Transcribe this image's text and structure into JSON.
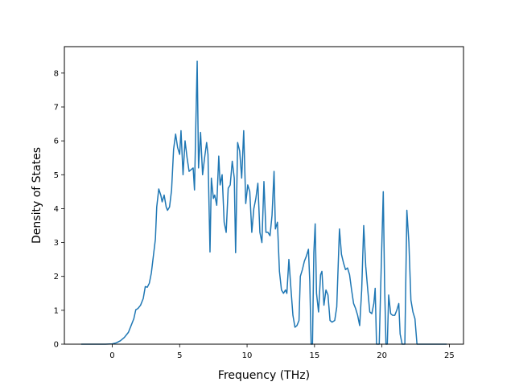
{
  "chart_data": {
    "type": "line",
    "title": "",
    "xlabel": "Frequency (THz)",
    "ylabel": "Density of States",
    "xlim": [
      -3.55,
      26.05
    ],
    "ylim": [
      0,
      8.78
    ],
    "xticks": [
      0,
      5,
      10,
      15,
      20,
      25
    ],
    "yticks": [
      0,
      1,
      2,
      3,
      4,
      5,
      6,
      7,
      8
    ],
    "grid": false,
    "legend": "none",
    "series": [
      {
        "color": "#1f77b4",
        "points": [
          [
            -2.3,
            0
          ],
          [
            -1.5,
            0
          ],
          [
            -0.5,
            0
          ],
          [
            0,
            0.01
          ],
          [
            0.3,
            0.04
          ],
          [
            0.6,
            0.1
          ],
          [
            0.9,
            0.2
          ],
          [
            1.2,
            0.35
          ],
          [
            1.4,
            0.55
          ],
          [
            1.6,
            0.75
          ],
          [
            1.75,
            1.02
          ],
          [
            1.9,
            1.05
          ],
          [
            2.1,
            1.15
          ],
          [
            2.3,
            1.35
          ],
          [
            2.45,
            1.7
          ],
          [
            2.6,
            1.68
          ],
          [
            2.75,
            1.8
          ],
          [
            2.9,
            2.1
          ],
          [
            3.05,
            2.6
          ],
          [
            3.2,
            3.1
          ],
          [
            3.3,
            4.05
          ],
          [
            3.45,
            4.58
          ],
          [
            3.6,
            4.4
          ],
          [
            3.7,
            4.2
          ],
          [
            3.85,
            4.4
          ],
          [
            4.0,
            4.05
          ],
          [
            4.1,
            3.95
          ],
          [
            4.25,
            4.05
          ],
          [
            4.4,
            4.55
          ],
          [
            4.55,
            5.75
          ],
          [
            4.7,
            6.2
          ],
          [
            4.85,
            5.8
          ],
          [
            5.0,
            5.6
          ],
          [
            5.1,
            6.3
          ],
          [
            5.25,
            5.0
          ],
          [
            5.4,
            6.0
          ],
          [
            5.55,
            5.5
          ],
          [
            5.7,
            5.1
          ],
          [
            5.85,
            5.15
          ],
          [
            6.0,
            5.2
          ],
          [
            6.1,
            4.55
          ],
          [
            6.2,
            6.5
          ],
          [
            6.3,
            8.35
          ],
          [
            6.4,
            5.2
          ],
          [
            6.55,
            6.25
          ],
          [
            6.7,
            5.0
          ],
          [
            6.85,
            5.5
          ],
          [
            7.0,
            5.95
          ],
          [
            7.1,
            5.6
          ],
          [
            7.25,
            2.72
          ],
          [
            7.35,
            4.9
          ],
          [
            7.5,
            4.3
          ],
          [
            7.6,
            4.4
          ],
          [
            7.75,
            4.1
          ],
          [
            7.9,
            5.55
          ],
          [
            8.0,
            4.7
          ],
          [
            8.15,
            5.0
          ],
          [
            8.3,
            3.6
          ],
          [
            8.45,
            3.3
          ],
          [
            8.6,
            4.6
          ],
          [
            8.75,
            4.7
          ],
          [
            8.9,
            5.4
          ],
          [
            9.05,
            4.9
          ],
          [
            9.15,
            2.7
          ],
          [
            9.3,
            5.95
          ],
          [
            9.45,
            5.7
          ],
          [
            9.6,
            4.9
          ],
          [
            9.75,
            6.3
          ],
          [
            9.9,
            4.15
          ],
          [
            10.05,
            4.7
          ],
          [
            10.2,
            4.5
          ],
          [
            10.35,
            3.3
          ],
          [
            10.5,
            4.0
          ],
          [
            10.65,
            4.3
          ],
          [
            10.8,
            4.75
          ],
          [
            10.95,
            3.3
          ],
          [
            11.1,
            3.0
          ],
          [
            11.25,
            4.8
          ],
          [
            11.4,
            3.3
          ],
          [
            11.55,
            3.3
          ],
          [
            11.7,
            3.2
          ],
          [
            11.85,
            3.8
          ],
          [
            12.0,
            5.1
          ],
          [
            12.1,
            3.4
          ],
          [
            12.25,
            3.6
          ],
          [
            12.4,
            2.15
          ],
          [
            12.55,
            1.6
          ],
          [
            12.7,
            1.5
          ],
          [
            12.85,
            1.6
          ],
          [
            12.95,
            1.5
          ],
          [
            13.1,
            2.5
          ],
          [
            13.25,
            1.65
          ],
          [
            13.4,
            0.85
          ],
          [
            13.55,
            0.5
          ],
          [
            13.7,
            0.55
          ],
          [
            13.85,
            0.7
          ],
          [
            13.95,
            2.0
          ],
          [
            14.1,
            2.2
          ],
          [
            14.25,
            2.45
          ],
          [
            14.4,
            2.6
          ],
          [
            14.55,
            2.8
          ],
          [
            14.65,
            1.85
          ],
          [
            14.75,
            0.0
          ],
          [
            14.85,
            0.0
          ],
          [
            14.95,
            2.7
          ],
          [
            15.05,
            3.55
          ],
          [
            15.15,
            1.5
          ],
          [
            15.3,
            0.95
          ],
          [
            15.45,
            2.05
          ],
          [
            15.55,
            2.15
          ],
          [
            15.7,
            1.15
          ],
          [
            15.85,
            1.6
          ],
          [
            16.0,
            1.45
          ],
          [
            16.15,
            0.7
          ],
          [
            16.3,
            0.65
          ],
          [
            16.5,
            0.7
          ],
          [
            16.65,
            1.1
          ],
          [
            16.85,
            3.4
          ],
          [
            17.0,
            2.65
          ],
          [
            17.15,
            2.4
          ],
          [
            17.3,
            2.2
          ],
          [
            17.45,
            2.25
          ],
          [
            17.6,
            2.05
          ],
          [
            17.75,
            1.6
          ],
          [
            17.9,
            1.2
          ],
          [
            18.05,
            1.05
          ],
          [
            18.2,
            0.85
          ],
          [
            18.35,
            0.55
          ],
          [
            18.5,
            1.6
          ],
          [
            18.65,
            3.5
          ],
          [
            18.8,
            2.3
          ],
          [
            18.95,
            1.6
          ],
          [
            19.1,
            0.95
          ],
          [
            19.25,
            0.9
          ],
          [
            19.4,
            1.2
          ],
          [
            19.5,
            1.65
          ],
          [
            19.6,
            0.0
          ],
          [
            19.8,
            0.0
          ],
          [
            19.95,
            2.3
          ],
          [
            20.1,
            4.5
          ],
          [
            20.2,
            1.7
          ],
          [
            20.3,
            0.0
          ],
          [
            20.4,
            0.0
          ],
          [
            20.5,
            1.45
          ],
          [
            20.65,
            0.9
          ],
          [
            20.8,
            0.85
          ],
          [
            20.95,
            0.85
          ],
          [
            21.1,
            1.0
          ],
          [
            21.25,
            1.2
          ],
          [
            21.35,
            0.3
          ],
          [
            21.5,
            0.0
          ],
          [
            21.7,
            0.0
          ],
          [
            21.85,
            3.95
          ],
          [
            22.0,
            3.0
          ],
          [
            22.15,
            1.3
          ],
          [
            22.3,
            0.95
          ],
          [
            22.45,
            0.75
          ],
          [
            22.6,
            0.0
          ],
          [
            23.5,
            0
          ],
          [
            24.8,
            0
          ]
        ]
      }
    ]
  }
}
